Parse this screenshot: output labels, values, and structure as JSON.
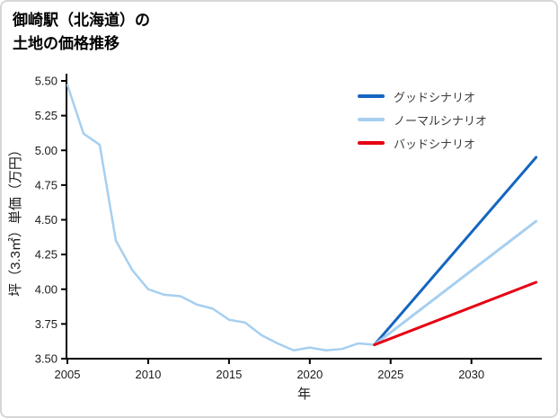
{
  "header": {
    "title_line1": "御崎駅（北海道）の",
    "title_line2": "土地の価格推移"
  },
  "chart_data": {
    "type": "line",
    "title": "御崎駅（北海道）の土地の価格推移",
    "xlabel": "年",
    "ylabel": "坪（3.3㎡）単価（万円）",
    "xlim": [
      2005,
      2034.3
    ],
    "ylim": [
      3.5,
      5.5
    ],
    "xticks": [
      2005,
      2010,
      2015,
      2020,
      2025,
      2030
    ],
    "yticks": [
      3.5,
      3.75,
      4.0,
      4.25,
      4.5,
      4.75,
      5.0,
      5.25,
      5.5
    ],
    "grid": false,
    "legend_position": "upper right",
    "axis_color": "#000000",
    "tick_label_color": "#1a1a1a",
    "series": [
      {
        "name": "history",
        "color": "#a6cff0",
        "width": 2.5,
        "x": [
          2005,
          2006,
          2007,
          2008,
          2009,
          2010,
          2011,
          2012,
          2013,
          2014,
          2015,
          2016,
          2017,
          2018,
          2019,
          2020,
          2021,
          2022,
          2023,
          2024
        ],
        "y": [
          5.47,
          5.12,
          5.04,
          4.35,
          4.14,
          4.0,
          3.96,
          3.95,
          3.89,
          3.86,
          3.78,
          3.76,
          3.67,
          3.61,
          3.56,
          3.58,
          3.56,
          3.57,
          3.61,
          3.6
        ]
      },
      {
        "name": "グッドシナリオ",
        "color": "#1565c0",
        "width": 3,
        "x": [
          2024,
          2034
        ],
        "y": [
          3.6,
          4.95
        ]
      },
      {
        "name": "ノーマルシナリオ",
        "color": "#a6cff0",
        "width": 3,
        "x": [
          2024,
          2034
        ],
        "y": [
          3.6,
          4.49
        ]
      },
      {
        "name": "バッドシナリオ",
        "color": "#e60012",
        "width": 3,
        "x": [
          2024,
          2034
        ],
        "y": [
          3.6,
          4.05
        ]
      }
    ],
    "legend": [
      {
        "label": "グッドシナリオ",
        "color": "#1565c0"
      },
      {
        "label": "ノーマルシナリオ",
        "color": "#a6cff0"
      },
      {
        "label": "バッドシナリオ",
        "color": "#e60012"
      }
    ]
  }
}
